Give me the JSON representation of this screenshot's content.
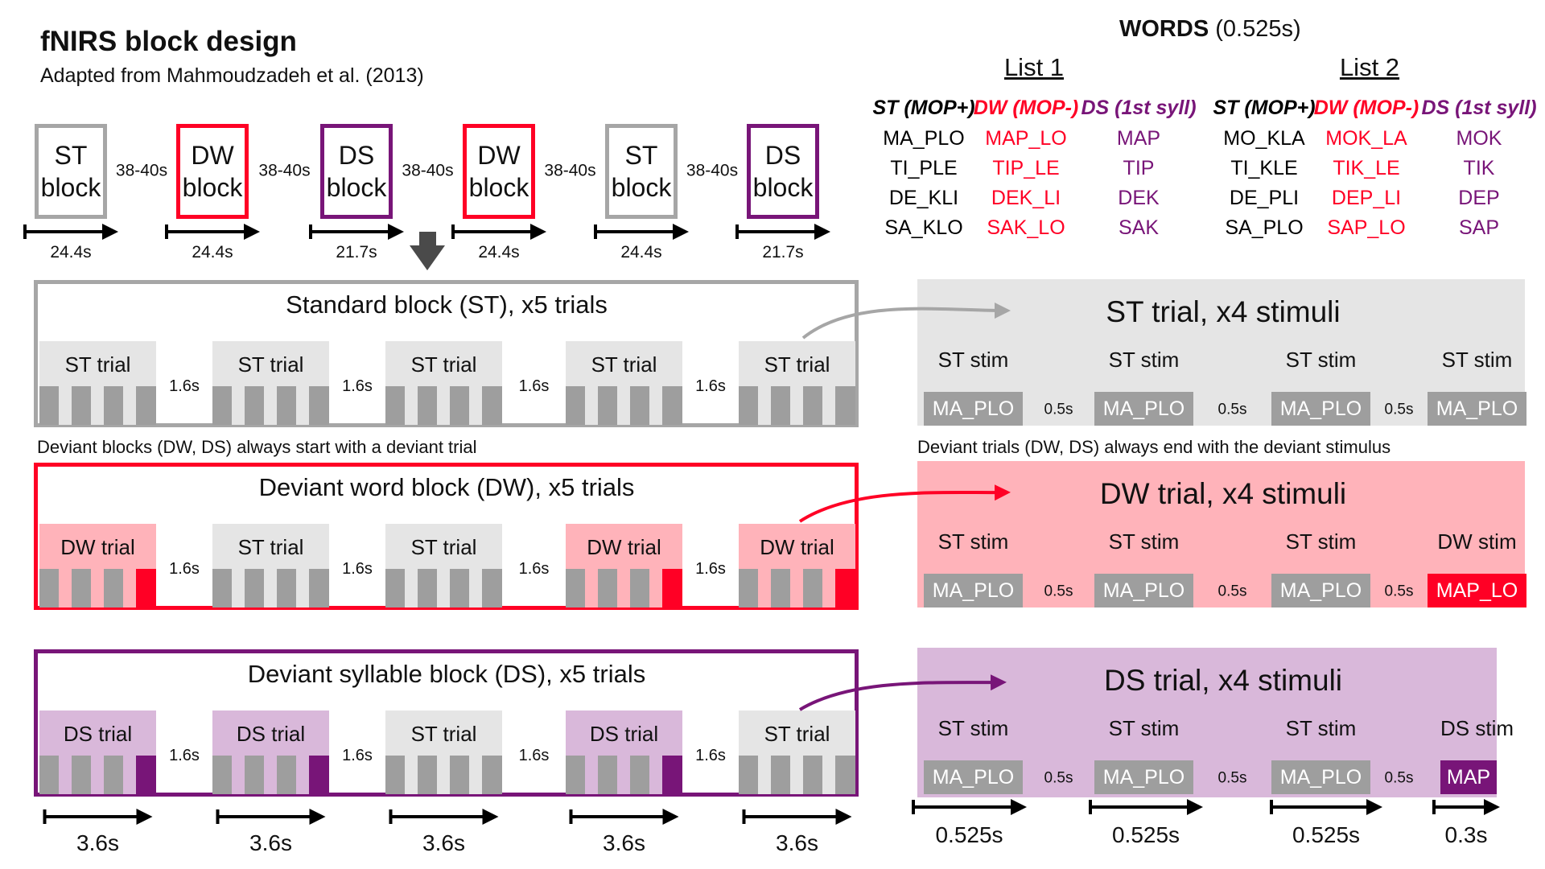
{
  "title": "fNIRS block design",
  "subtitle": "Adapted from Mahmoudzadeh et al. (2013)",
  "colors": {
    "st": "#a6a6a6",
    "dw": "#ff0025",
    "ds": "#781578",
    "st_fill": "#e5e5e5",
    "dw_fill": "#ffb3ba",
    "ds_fill": "#d9b8da",
    "bar": "#9e9e9e",
    "dark": "#4a4a4a"
  },
  "sequence": {
    "blocks": [
      {
        "line1": "ST",
        "line2": "block",
        "type": "st",
        "duration": "24.4s"
      },
      {
        "line1": "DW",
        "line2": "block",
        "type": "dw",
        "duration": "24.4s"
      },
      {
        "line1": "DS",
        "line2": "block",
        "type": "ds",
        "duration": "21.7s"
      },
      {
        "line1": "DW",
        "line2": "block",
        "type": "dw",
        "duration": "24.4s"
      },
      {
        "line1": "ST",
        "line2": "block",
        "type": "st",
        "duration": "24.4s"
      },
      {
        "line1": "DS",
        "line2": "block",
        "type": "ds",
        "duration": "21.7s"
      }
    ],
    "gap": "38-40s"
  },
  "sections": [
    {
      "title": "Standard block (ST), x5 trials",
      "type": "st",
      "trials": [
        "ST trial",
        "ST trial",
        "ST trial",
        "ST trial",
        "ST trial"
      ],
      "trial_types": [
        "st",
        "st",
        "st",
        "st",
        "st"
      ],
      "gap": "1.6s"
    },
    {
      "title": "Deviant word block (DW), x5 trials",
      "type": "dw",
      "trials": [
        "DW trial",
        "ST trial",
        "ST trial",
        "DW trial",
        "DW trial"
      ],
      "trial_types": [
        "dw",
        "st",
        "st",
        "dw",
        "dw"
      ],
      "gap": "1.6s"
    },
    {
      "title": "Deviant syllable block (DS), x5 trials",
      "type": "ds",
      "trials": [
        "DS trial",
        "DS trial",
        "ST trial",
        "DS trial",
        "ST trial"
      ],
      "trial_types": [
        "ds",
        "ds",
        "st",
        "ds",
        "st"
      ],
      "gap": "1.6s"
    }
  ],
  "notes": {
    "blocks": "Deviant blocks (DW, DS) always start with a deviant trial",
    "trials": "Deviant trials (DW, DS) always end with the deviant stimulus"
  },
  "trial_durations": [
    "3.6s",
    "3.6s",
    "3.6s",
    "3.6s",
    "3.6s"
  ],
  "panels": [
    {
      "title": "ST trial, x4 stimuli",
      "type": "st",
      "stims": [
        {
          "label": "ST stim",
          "chip": "MA_PLO",
          "kind": "st"
        },
        {
          "label": "ST stim",
          "chip": "MA_PLO",
          "kind": "st"
        },
        {
          "label": "ST stim",
          "chip": "MA_PLO",
          "kind": "st"
        },
        {
          "label": "ST stim",
          "chip": "MA_PLO",
          "kind": "st"
        }
      ],
      "gap": "0.5s"
    },
    {
      "title": "DW trial, x4 stimuli",
      "type": "dw",
      "stims": [
        {
          "label": "ST stim",
          "chip": "MA_PLO",
          "kind": "st"
        },
        {
          "label": "ST stim",
          "chip": "MA_PLO",
          "kind": "st"
        },
        {
          "label": "ST stim",
          "chip": "MA_PLO",
          "kind": "st"
        },
        {
          "label": "DW stim",
          "chip": "MAP_LO",
          "kind": "dw"
        }
      ],
      "gap": "0.5s"
    },
    {
      "title": "DS trial, x4 stimuli",
      "type": "ds",
      "stims": [
        {
          "label": "ST stim",
          "chip": "MA_PLO",
          "kind": "st"
        },
        {
          "label": "ST stim",
          "chip": "MA_PLO",
          "kind": "st"
        },
        {
          "label": "ST stim",
          "chip": "MA_PLO",
          "kind": "st"
        },
        {
          "label": "DS stim",
          "chip": "MAP",
          "kind": "ds"
        }
      ],
      "gap": "0.5s"
    }
  ],
  "stim_durations": [
    "0.525s",
    "0.525s",
    "0.525s",
    "0.3s"
  ],
  "words": {
    "heading": "WORDS",
    "heading_suffix": "(0.525s)",
    "lists": [
      {
        "name": "List 1",
        "columns": [
          {
            "head": "ST (MOP+)",
            "type": "st",
            "items": [
              "MA_PLO",
              "TI_PLE",
              "DE_KLI",
              "SA_KLO"
            ]
          },
          {
            "head": "DW (MOP-)",
            "type": "dw",
            "items": [
              "MAP_LO",
              "TIP_LE",
              "DEK_LI",
              "SAK_LO"
            ]
          },
          {
            "head": "DS (1st syll)",
            "type": "ds",
            "items": [
              "MAP",
              "TIP",
              "DEK",
              "SAK"
            ]
          }
        ]
      },
      {
        "name": "List 2",
        "columns": [
          {
            "head": "ST (MOP+)",
            "type": "st",
            "items": [
              "MO_KLA",
              "TI_KLE",
              "DE_PLI",
              "SA_PLO"
            ]
          },
          {
            "head": "DW (MOP-)",
            "type": "dw",
            "items": [
              "MOK_LA",
              "TIK_LE",
              "DEP_LI",
              "SAP_LO"
            ]
          },
          {
            "head": "DS (1st syll)",
            "type": "ds",
            "items": [
              "MOK",
              "TIK",
              "DEP",
              "SAP"
            ]
          }
        ]
      }
    ]
  }
}
